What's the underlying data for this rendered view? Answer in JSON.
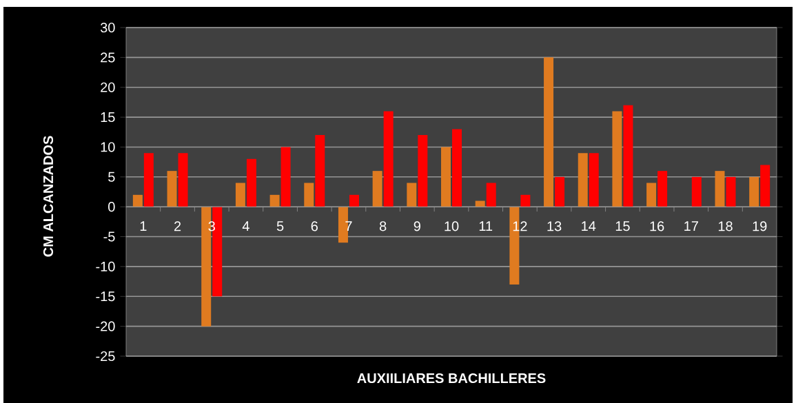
{
  "chart_data": {
    "type": "bar",
    "xlabel": "AUXIILIARES BACHILLERES",
    "ylabel": "CM ALCANZADOS",
    "categories": [
      "1",
      "2",
      "3",
      "4",
      "5",
      "6",
      "7",
      "8",
      "9",
      "10",
      "11",
      "12",
      "13",
      "14",
      "15",
      "16",
      "17",
      "18",
      "19"
    ],
    "series": [
      {
        "color": "#e07b20",
        "values": [
          2,
          6,
          -20,
          4,
          2,
          4,
          -6,
          6,
          4,
          10,
          1,
          -13,
          25,
          9,
          16,
          4,
          null,
          6,
          5
        ]
      },
      {
        "color": "#ff0000",
        "values": [
          9,
          9,
          -15,
          8,
          10,
          12,
          2,
          16,
          12,
          13,
          4,
          2,
          5,
          9,
          17,
          6,
          5,
          5,
          7
        ]
      }
    ],
    "ylim": [
      -25,
      30
    ],
    "yticks": [
      -25,
      -20,
      -15,
      -10,
      -5,
      0,
      5,
      10,
      15,
      20,
      25,
      30
    ],
    "grid": "y"
  }
}
